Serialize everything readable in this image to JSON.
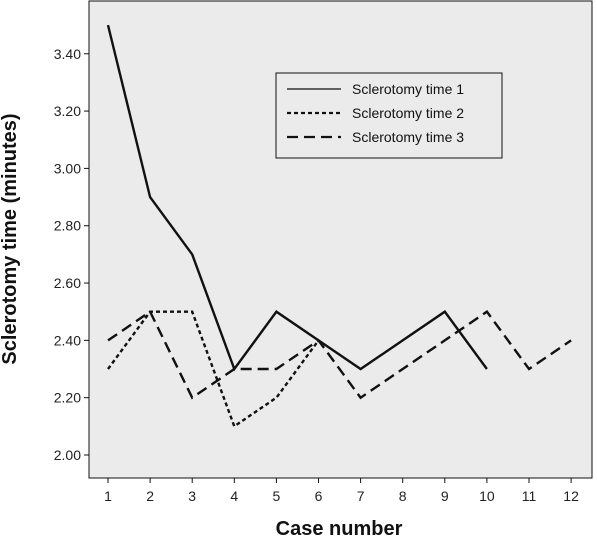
{
  "chart_data": {
    "type": "line",
    "xlabel": "Case number",
    "ylabel": "Sclerotomy time (minutes)",
    "categories": [
      1,
      2,
      3,
      4,
      5,
      6,
      7,
      8,
      9,
      10,
      11,
      12
    ],
    "ylim": [
      1.9,
      3.55
    ],
    "yticks": [
      "2.00",
      "2.20",
      "2.40",
      "2.60",
      "2.80",
      "3.00",
      "3.20",
      "3.40"
    ],
    "grid": false,
    "legend_position": "top-right",
    "background_color": "#ebebeb",
    "series": [
      {
        "name": "Sclerotomy time 1",
        "style": "solid",
        "x": [
          1,
          2,
          3,
          4,
          5,
          6,
          7,
          8,
          9,
          10
        ],
        "values": [
          3.5,
          2.9,
          2.7,
          2.3,
          2.5,
          2.4,
          2.3,
          2.4,
          2.5,
          2.3
        ]
      },
      {
        "name": "Sclerotomy time 2",
        "style": "dotted",
        "x": [
          1,
          2,
          3,
          4,
          5,
          6
        ],
        "values": [
          2.3,
          2.5,
          2.5,
          2.1,
          2.2,
          2.4
        ]
      },
      {
        "name": "Sclerotomy time 3",
        "style": "dashed",
        "x": [
          1,
          2,
          3,
          4,
          5,
          6,
          7,
          8,
          9,
          10,
          11,
          12
        ],
        "values": [
          2.4,
          2.5,
          2.2,
          2.3,
          2.3,
          2.4,
          2.2,
          2.3,
          2.4,
          2.5,
          2.3,
          2.4
        ]
      }
    ]
  }
}
